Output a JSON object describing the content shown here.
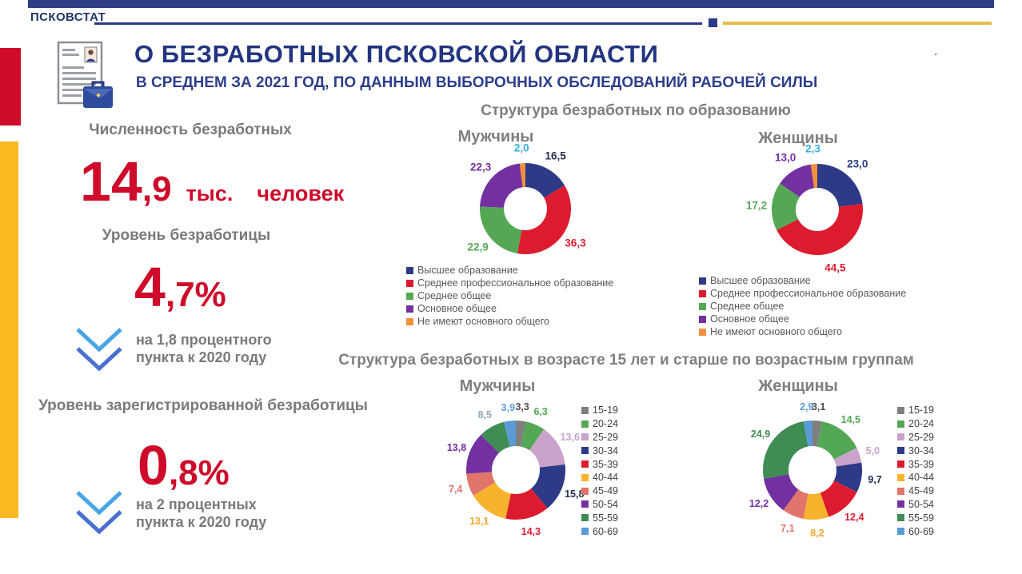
{
  "brand": {
    "name": "ПСКОВСТАТ"
  },
  "header": {
    "title": "О БЕЗРАБОТНЫХ ПСКОВСКОЙ ОБЛАСТИ",
    "subtitle": "В СРЕДНЕМ ЗА 2021 ГОД, ПО ДАННЫМ ВЫБОРОЧНЫХ ОБСЛЕДОВАНИЙ РАБОЧЕЙ СИЛЫ",
    "stray_dot": "."
  },
  "stats": {
    "count": {
      "label": "Численность безработных",
      "big": "14",
      "frac": ",9",
      "unit1": "тыс.",
      "unit2": "человек"
    },
    "rate": {
      "label": "Уровень безработицы",
      "big": "4",
      "frac": ",7%",
      "note1": "на 1,8 процентного",
      "note2": "пункта к 2020 году"
    },
    "registered": {
      "label": "Уровень зарегистрированной безработицы",
      "big": "0",
      "frac": ",8%",
      "note1": "на 2 процентных",
      "note2": "пункта к 2020 году"
    }
  },
  "sections": {
    "education_title": "Структура безработных по образованию",
    "age_title": "Структура безработных в возрасте 15 лет и старше по возрастным группам"
  },
  "chart_data": [
    {
      "type": "donut",
      "group": "Структура безработных по образованию",
      "title": "Мужчины",
      "categories": [
        "Высшее образование",
        "Среднее профессиональное образование",
        "Среднее общее",
        "Основное общее",
        "Не имеют основного общего"
      ],
      "values": [
        16.5,
        36.3,
        22.9,
        22.3,
        2.0
      ],
      "labels": [
        "16,5",
        "36,3",
        "22,9",
        "22,3",
        "2,0"
      ],
      "colors": [
        "#2C3A87",
        "#DC1C2E",
        "#55A754",
        "#7230A0",
        "#F0923B"
      ],
      "label_colors": [
        "#252E49",
        "#DC1C2E",
        "#55A754",
        "#7230A0",
        "#33ADE0"
      ],
      "legend_position": "bottom"
    },
    {
      "type": "donut",
      "group": "Структура безработных по образованию",
      "title": "Женщины",
      "categories": [
        "Высшее образование",
        "Среднее профессиональное образование",
        "Среднее общее",
        "Основное общее",
        "Не имеют основного общего"
      ],
      "values": [
        23.0,
        44.5,
        17.2,
        13.0,
        2.3
      ],
      "labels": [
        "23,0",
        "44,5",
        "17,2",
        "13,0",
        "2,3"
      ],
      "colors": [
        "#2C3A87",
        "#DC1C2E",
        "#55A754",
        "#7230A0",
        "#F0923B"
      ],
      "label_colors": [
        "#2C3A87",
        "#DC1C2E",
        "#55A754",
        "#7230A0",
        "#33ADE0"
      ],
      "legend_position": "bottom"
    },
    {
      "type": "donut",
      "group": "Структура безработных в возрасте 15 лет и старше по возрастным группам",
      "title": "Мужчины",
      "categories": [
        "15-19",
        "20-24",
        "25-29",
        "30-34",
        "35-39",
        "40-44",
        "45-49",
        "50-54",
        "55-59",
        "60-69"
      ],
      "values": [
        3.3,
        6.3,
        13.6,
        15.8,
        14.3,
        13.1,
        7.4,
        13.8,
        8.5,
        3.9
      ],
      "labels": [
        "3,3",
        "6,3",
        "13,6",
        "15,8",
        "14,3",
        "13,1",
        "7,4",
        "13,8",
        "8,5",
        "3,9"
      ],
      "colors": [
        "#7F7F7F",
        "#54A754",
        "#C9A3CA",
        "#2C3A87",
        "#DC1C2E",
        "#F7B32E",
        "#E2756B",
        "#7230A0",
        "#3F8C55",
        "#5B9BD5"
      ],
      "label_colors": [
        "#4D4D4D",
        "#54A754",
        "#C9A3CA",
        "#222E54",
        "#DC1C2E",
        "#F0A929",
        "#E2756B",
        "#7230A0",
        "#8FA6BC",
        "#5B9BD5"
      ],
      "legend_position": "right"
    },
    {
      "type": "donut",
      "group": "Структура безработных в возрасте 15 лет и старше по возрастным группам",
      "title": "Женщины",
      "categories": [
        "15-19",
        "20-24",
        "25-29",
        "30-34",
        "35-39",
        "40-44",
        "45-49",
        "50-54",
        "55-59",
        "60-69"
      ],
      "values": [
        3.1,
        14.5,
        5.0,
        9.7,
        12.4,
        8.2,
        7.1,
        12.2,
        24.9,
        2.9
      ],
      "labels": [
        "3,1",
        "14,5",
        "5,0",
        "9,7",
        "12,4",
        "8,2",
        "7,1",
        "12,2",
        "24,9",
        "2,9"
      ],
      "colors": [
        "#7F7F7F",
        "#54A754",
        "#C9A3CA",
        "#2C3A87",
        "#DC1C2E",
        "#F7B32E",
        "#E2756B",
        "#7230A0",
        "#3F8C55",
        "#5B9BD5"
      ],
      "label_colors": [
        "#4D4D4D",
        "#54A754",
        "#C9A3CA",
        "#222E54",
        "#DC1C2E",
        "#F0A929",
        "#E2756B",
        "#7230A0",
        "#3F8C55",
        "#5B9BD5"
      ],
      "legend_position": "right"
    }
  ],
  "palette": {
    "accent_red": "#CE0B2A",
    "accent_yellow": "#FBB921",
    "navy": "#2C3A87",
    "gray_text": "#7F7F7F",
    "arrow_light_blue": "#47A4E5",
    "arrow_blue": "#4A6FD0",
    "gold_rule": "#E4BC49"
  }
}
